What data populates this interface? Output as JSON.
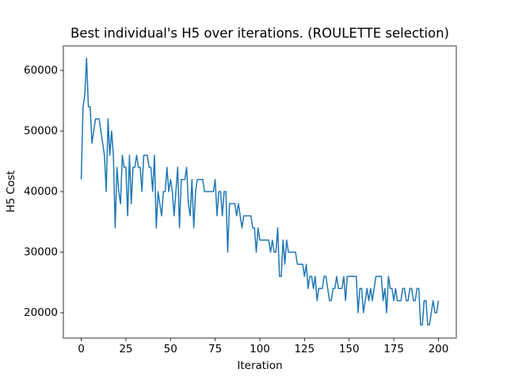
{
  "chart_data": {
    "type": "line",
    "title": "Best individual's H5 over iterations. (ROULETTE selection)",
    "xlabel": "Iteration",
    "ylabel": "H5 Cost",
    "x": [
      0,
      1,
      2,
      3,
      4,
      5,
      6,
      7,
      8,
      9,
      10,
      11,
      12,
      13,
      14,
      15,
      16,
      17,
      18,
      19,
      20,
      21,
      22,
      23,
      24,
      25,
      26,
      27,
      28,
      29,
      30,
      31,
      32,
      33,
      34,
      35,
      36,
      37,
      38,
      39,
      40,
      41,
      42,
      43,
      44,
      45,
      46,
      47,
      48,
      49,
      50,
      51,
      52,
      53,
      54,
      55,
      56,
      57,
      58,
      59,
      60,
      61,
      62,
      63,
      64,
      65,
      66,
      67,
      68,
      69,
      70,
      71,
      72,
      73,
      74,
      75,
      76,
      77,
      78,
      79,
      80,
      81,
      82,
      83,
      84,
      85,
      86,
      87,
      88,
      89,
      90,
      91,
      92,
      93,
      94,
      95,
      96,
      97,
      98,
      99,
      100,
      101,
      102,
      103,
      104,
      105,
      106,
      107,
      108,
      109,
      110,
      111,
      112,
      113,
      114,
      115,
      116,
      117,
      118,
      119,
      120,
      121,
      122,
      123,
      124,
      125,
      126,
      127,
      128,
      129,
      130,
      131,
      132,
      133,
      134,
      135,
      136,
      137,
      138,
      139,
      140,
      141,
      142,
      143,
      144,
      145,
      146,
      147,
      148,
      149,
      150,
      151,
      152,
      153,
      154,
      155,
      156,
      157,
      158,
      159,
      160,
      161,
      162,
      163,
      164,
      165,
      166,
      167,
      168,
      169,
      170,
      171,
      172,
      173,
      174,
      175,
      176,
      177,
      178,
      179,
      180,
      181,
      182,
      183,
      184,
      185,
      186,
      187,
      188,
      189,
      190,
      191,
      192,
      193,
      194,
      195,
      196,
      197,
      198,
      199,
      200
    ],
    "series": [
      {
        "color": "#1f77b4",
        "values": [
          42000,
          54000,
          56000,
          62000,
          54000,
          54000,
          48000,
          50000,
          52000,
          52000,
          52000,
          50000,
          48000,
          46000,
          40000,
          52000,
          46000,
          50000,
          46000,
          34000,
          44000,
          40000,
          38000,
          46000,
          44000,
          44000,
          36000,
          46000,
          38000,
          44000,
          44000,
          46000,
          44000,
          44000,
          40000,
          46000,
          46000,
          46000,
          44000,
          44000,
          40000,
          46000,
          34000,
          40000,
          38000,
          36000,
          40000,
          40000,
          44000,
          40000,
          42000,
          40000,
          36000,
          40000,
          44000,
          34000,
          42000,
          42000,
          42000,
          44000,
          38000,
          36000,
          42000,
          34000,
          40000,
          42000,
          42000,
          42000,
          42000,
          40000,
          40000,
          40000,
          40000,
          40000,
          40000,
          42000,
          36000,
          40000,
          40000,
          36000,
          40000,
          40000,
          30000,
          38000,
          38000,
          38000,
          38000,
          36000,
          38000,
          36000,
          34000,
          36000,
          36000,
          36000,
          36000,
          36000,
          34000,
          34000,
          30000,
          34000,
          32000,
          32000,
          32000,
          32000,
          32000,
          32000,
          30000,
          32000,
          30000,
          30000,
          34000,
          26000,
          26000,
          32000,
          28000,
          32000,
          30000,
          30000,
          30000,
          30000,
          30000,
          28000,
          28000,
          28000,
          28000,
          26000,
          28000,
          24000,
          26000,
          26000,
          24000,
          26000,
          22000,
          24000,
          24000,
          24000,
          26000,
          26000,
          24000,
          22000,
          22000,
          24000,
          24000,
          26000,
          24000,
          24000,
          24000,
          26000,
          22000,
          26000,
          26000,
          26000,
          26000,
          26000,
          26000,
          20000,
          24000,
          24000,
          20000,
          22000,
          24000,
          22000,
          24000,
          22000,
          24000,
          26000,
          26000,
          26000,
          26000,
          22000,
          24000,
          20000,
          26000,
          24000,
          24000,
          22000,
          24000,
          22000,
          22000,
          22000,
          24000,
          24000,
          22000,
          22000,
          24000,
          24000,
          22000,
          22000,
          24000,
          24000,
          18000,
          18000,
          22000,
          22000,
          18000,
          18000,
          20000,
          22000,
          20000,
          20000,
          22000
        ]
      }
    ],
    "xlim": [
      -10,
      210
    ],
    "ylim": [
      15820,
      64050
    ],
    "xticks": [
      0,
      25,
      50,
      75,
      100,
      125,
      150,
      175,
      200
    ],
    "yticks": [
      20000,
      30000,
      40000,
      50000,
      60000
    ]
  }
}
